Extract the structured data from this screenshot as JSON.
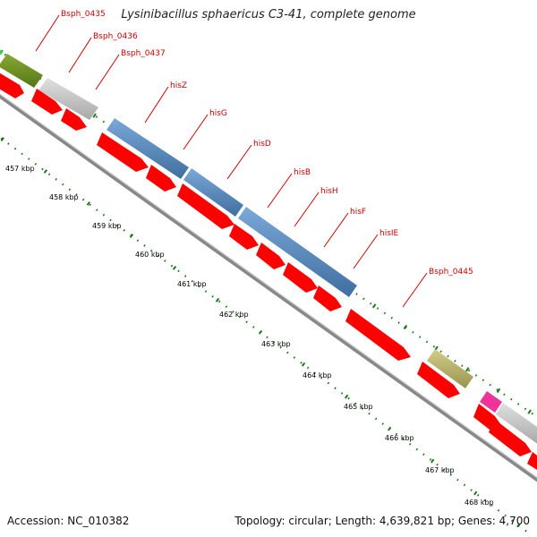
{
  "header": {
    "title": "Lysinibacillus sphaericus C3-41, complete genome"
  },
  "footer": {
    "accession": "Accession: NC_010382",
    "summary": "Topology: circular; Length: 4,639,821 bp; Genes: 4,700"
  },
  "colors": {
    "cds": "#ff0000",
    "label": "#cc0000",
    "ticks": "#1a7a1a",
    "backbone": "#888888",
    "blue_cog": "#5b8fc7",
    "olive_cog": "#6b8e23",
    "gray_cog": "#c8c8c8",
    "khaki_cog": "#bdb76b",
    "green_cog": "#33dd55",
    "pink_cog": "#ee3399"
  },
  "gene_labels": [
    {
      "name": "Bsph_0435"
    },
    {
      "name": "Bsph_0436"
    },
    {
      "name": "Bsph_0437"
    },
    {
      "name": "hisZ"
    },
    {
      "name": "hisG"
    },
    {
      "name": "hisD"
    },
    {
      "name": "hisB"
    },
    {
      "name": "hisH"
    },
    {
      "name": "hisF"
    },
    {
      "name": "hisIE"
    },
    {
      "name": "Bsph_0445"
    }
  ],
  "kbp_labels": [
    "457 kbp",
    "458 kbp",
    "459 kbp",
    "460 kbp",
    "461 kbp",
    "462 kbp",
    "463 kbp",
    "464 kbp",
    "465 kbp",
    "466 kbp",
    "467 kbp",
    "468 kbp"
  ]
}
